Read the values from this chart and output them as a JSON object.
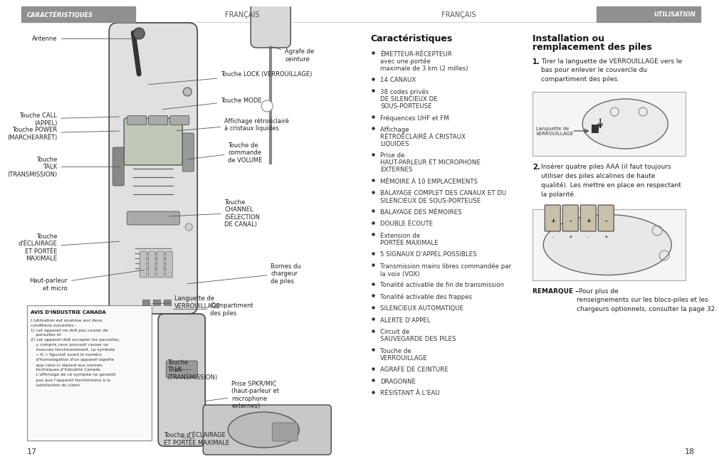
{
  "page_bg": "#ffffff",
  "header_left_text": "CARACTÉRISTIQUES",
  "header_center_left": "FRANÇAIS",
  "header_center_right": "FRANÇAIS",
  "header_right_text": "UTILISATION",
  "page_num_left": "17",
  "page_num_right": "18",
  "bullets": [
    [
      "ÉMETTEUR-RÉCEPTEUR",
      " avec une portée\nmaximale de 3 km (2 milles)"
    ],
    [
      "14 CANAUX",
      ""
    ],
    [
      "38 codes privés ",
      "DE SILENCIEUX DE\nSOUS-PORTEUSE"
    ],
    [
      "Fréquences UHF et FM",
      ""
    ],
    [
      "Affichage ",
      "RÉTROÉCLAIRÉ À CRISTAUX\nLIQUIDES"
    ],
    [
      "Prise de ",
      "HAUT-PARLEUR ET MICROPHONE\nEXTERNES"
    ],
    [
      "MÉMOIRE À 10 EMPLACEMENTS",
      ""
    ],
    [
      "BALAYAGE COMPLET DES CANAUX ET DU\nSILENCIEUX DE SOUS-PORTEUSE",
      ""
    ],
    [
      "BALAYAGE DES MÉMOIRES",
      ""
    ],
    [
      "DOUBLE ÉCOUTE",
      ""
    ],
    [
      "Extension de ",
      "PORTÉE MAXIMALE"
    ],
    [
      "5 SIGNAUX D'APPEL POSSIBLES",
      ""
    ],
    [
      "Transmission mains libres commandée par\nla voix (VOX)",
      ""
    ],
    [
      "Tonalité activable de fin de transmission",
      ""
    ],
    [
      "Tonalité activable des frappes",
      ""
    ],
    [
      "SILENCIEUX AUTOMATIQUE",
      ""
    ],
    [
      "ALERTE D'APPEL",
      ""
    ],
    [
      "Circuit de ",
      "SAUVEGARDE DES PILES"
    ],
    [
      "Touche de ",
      "VERROUILLAGE"
    ],
    [
      "AGRAFE DE CEINTURE",
      ""
    ],
    [
      "DRAGONNE",
      ""
    ],
    [
      "RÉSISTANT À L'EAU",
      ""
    ]
  ],
  "warning_title": "AVIS D'INDUSTRIE CANADA",
  "warning_body": "L'utilisation est soumise aux deux\nconditions suivantes :\n1) cet appareil ne doit pas causer de\n    parasites et\n2) cet appareil doit accepter les parasites,\n    y compris ceux pouvant causer un\n    mauvais fonctionnement. Le symbole\n    « IC » figurant avant le numéro\n    d'homologation d'un appareil signifie\n    que celui-ci répond aux normes\n    techniques d'Industrie Canada.\n    L'affichage de ce symbole ne garantit\n    pas que l'appareil fonctionnera à la\n    satisfaction du client.",
  "step1_intro": "Tirer la languette de VERROUILLAGE vers le\nbas pour enlever le couvercle du\ncompartiment des piles.",
  "step2_intro": "Insérer quatre piles AAA (il faut toujours\nutiliser des piles alcalines de haute\nqualité). Les mettre en place en respectant\nla polarité.",
  "remark_bold": "REMARQUE –",
  "remark_rest": " Pour plus de\nrenseignements sur les blocs-piles et les\nchargeurs optionnels, consulter la page 32."
}
